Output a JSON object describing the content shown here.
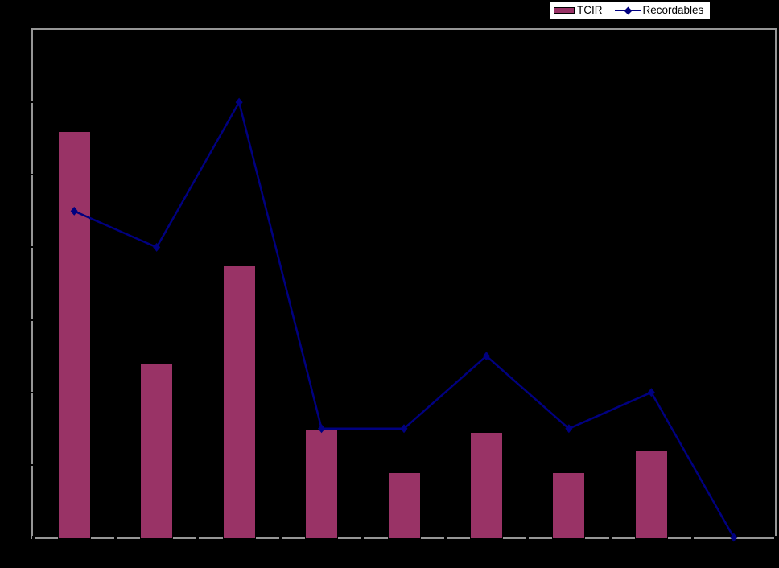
{
  "window": {
    "background": "#000000"
  },
  "legend": {
    "background": "#FFFFFF",
    "border_color": "#000000",
    "position": "top-right"
  },
  "axes": {
    "axis_color": "#969696",
    "tick_color": "#000000",
    "tick_labels_visible": false,
    "gridlines_visible": false
  },
  "chart_data": {
    "type": "bar",
    "subtype": "bar-line-combo",
    "title": "",
    "xlabel": "",
    "ylabel": "",
    "categories": [
      "",
      "",
      "",
      "",
      "",
      "",
      "",
      "",
      ""
    ],
    "series": [
      {
        "name": "TCIR",
        "type": "bar",
        "color": "#993366",
        "values": [
          11.2,
          4.8,
          7.5,
          3.0,
          1.8,
          2.9,
          1.8,
          2.4,
          null
        ]
      },
      {
        "name": "Recordables",
        "type": "line",
        "marker": "diamond",
        "color": "#000080",
        "values": [
          9,
          8,
          12,
          3,
          3,
          5,
          3,
          4,
          0
        ]
      }
    ],
    "ylim": [
      0,
      14
    ],
    "y_tick_step": 2,
    "legend_position": "top-right",
    "plot_background": "#000000"
  }
}
